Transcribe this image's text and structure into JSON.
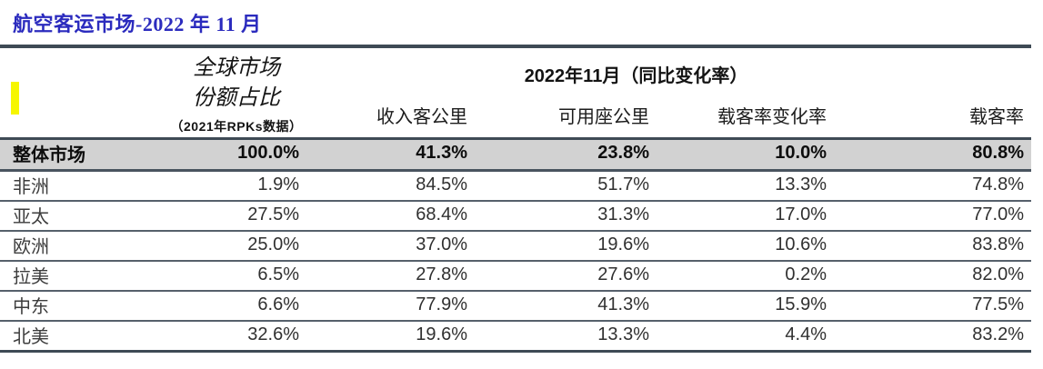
{
  "title": "航空客运市场-2022 年 11 月",
  "table": {
    "share_header_line1": "全球市场",
    "share_header_line2": "份额占比",
    "share_header_note": "（2021年RPKs数据）",
    "group_header": "2022年11月（同比变化率）",
    "col_rpk": "收入客公里",
    "col_ask": "可用座公里",
    "col_plf_change": "载客率变化率",
    "col_plf": "载客率",
    "rows": [
      {
        "label": "整体市场",
        "values": [
          "100.0%",
          "41.3%",
          "23.8%",
          "10.0%",
          "80.8%"
        ]
      },
      {
        "label": "非洲",
        "values": [
          "1.9%",
          "84.5%",
          "51.7%",
          "13.3%",
          "74.8%"
        ]
      },
      {
        "label": "亚太",
        "values": [
          "27.5%",
          "68.4%",
          "31.3%",
          "17.0%",
          "77.0%"
        ]
      },
      {
        "label": "欧洲",
        "values": [
          "25.0%",
          "37.0%",
          "19.6%",
          "10.6%",
          "83.8%"
        ]
      },
      {
        "label": "拉美",
        "values": [
          "6.5%",
          "27.8%",
          "27.6%",
          "0.2%",
          "82.0%"
        ]
      },
      {
        "label": "中东",
        "values": [
          "6.6%",
          "77.9%",
          "41.3%",
          "15.9%",
          "77.5%"
        ]
      },
      {
        "label": "北美",
        "values": [
          "32.6%",
          "19.6%",
          "13.3%",
          "4.4%",
          "83.2%"
        ]
      }
    ]
  },
  "colors": {
    "title_blue": "#2b2bbe",
    "rule_dark": "#3e4a55",
    "rule_light": "#56606b",
    "band_gray": "#d2d2d2",
    "marker_yellow": "#f6f600"
  }
}
